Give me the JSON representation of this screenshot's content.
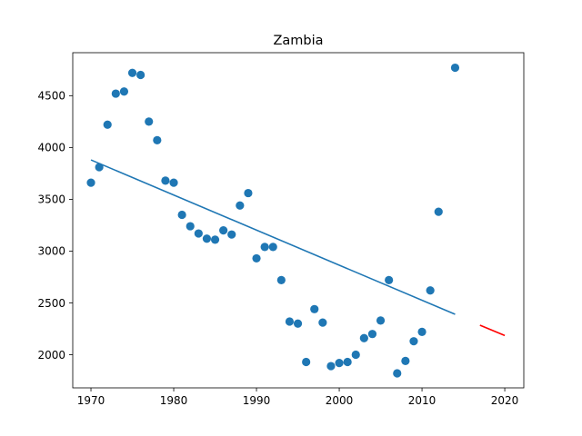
{
  "chart_data": {
    "type": "scatter",
    "title": "Zambia",
    "xlabel": "",
    "ylabel": "",
    "xlim": [
      1967.8,
      2022.3
    ],
    "ylim": [
      1680,
      4915
    ],
    "xticks": [
      1970,
      1980,
      1990,
      2000,
      2010,
      2020
    ],
    "yticks": [
      2000,
      2500,
      3000,
      3500,
      4000,
      4500
    ],
    "grid": false,
    "legend": "none",
    "colors": {
      "points": "#1f77b4",
      "trend": "#1f77b4",
      "projection": "#ff0000"
    },
    "series": [
      {
        "kind": "scatter",
        "x": [
          1970,
          1971,
          1972,
          1973,
          1974,
          1975,
          1976,
          1977,
          1978,
          1979,
          1980,
          1981,
          1982,
          1983,
          1984,
          1985,
          1986,
          1987,
          1988,
          1989,
          1990,
          1991,
          1992,
          1993,
          1994,
          1995,
          1996,
          1997,
          1998,
          1999,
          2000,
          2001,
          2002,
          2003,
          2004,
          2005,
          2006,
          2007,
          2008,
          2009,
          2010,
          2011,
          2012,
          2014
        ],
        "y": [
          3660,
          3810,
          4220,
          4520,
          4540,
          4720,
          4700,
          4250,
          4070,
          3680,
          3660,
          3350,
          3240,
          3170,
          3120,
          3110,
          3200,
          3160,
          3440,
          3560,
          2930,
          3040,
          3040,
          2720,
          2320,
          2300,
          1930,
          2440,
          2310,
          1890,
          1920,
          1930,
          2000,
          2160,
          2200,
          2330,
          2720,
          1820,
          1940,
          2130,
          2220,
          2620,
          3380,
          4770
        ]
      },
      {
        "kind": "line",
        "x": [
          1970,
          2014
        ],
        "y": [
          3880,
          2390
        ]
      },
      {
        "kind": "line",
        "x": [
          2017,
          2020
        ],
        "y": [
          2285,
          2185
        ]
      }
    ]
  }
}
